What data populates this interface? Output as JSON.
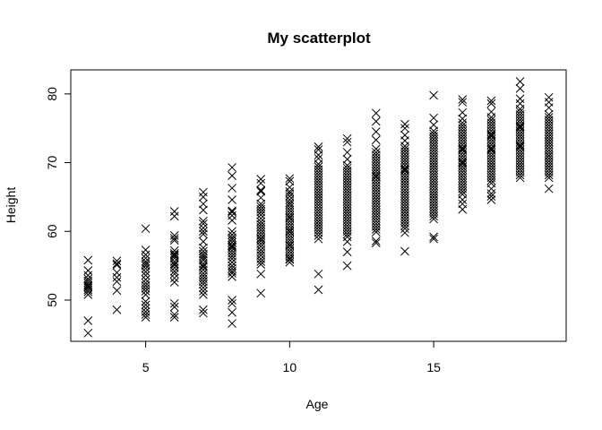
{
  "chart_data": {
    "type": "scatter",
    "title": "My scatterplot",
    "xlabel": "Age",
    "ylabel": "Height",
    "xlim": [
      2.4,
      19.6
    ],
    "ylim": [
      44,
      83.5
    ],
    "x_ticks": [
      5,
      10,
      15
    ],
    "y_ticks": [
      50,
      60,
      70,
      80
    ],
    "x_tick_labels": [
      "5",
      "10",
      "15"
    ],
    "y_tick_labels": [
      "50",
      "60",
      "70",
      "80"
    ],
    "marker": "x",
    "marker_color": "#000000",
    "grid": false,
    "legend": "none",
    "series": [
      {
        "x": [
          3,
          3,
          3,
          3,
          3,
          3,
          3,
          3,
          3,
          3,
          3,
          3,
          3,
          3,
          4,
          4,
          4,
          4,
          4,
          4,
          4,
          4,
          5,
          5,
          5,
          5,
          5,
          5,
          5,
          5,
          5,
          5,
          5,
          5,
          5,
          5,
          5,
          5,
          5,
          5,
          5,
          5,
          5,
          5,
          6,
          6,
          6,
          6,
          6,
          6,
          6,
          6,
          6,
          6,
          6,
          6,
          6,
          6,
          6,
          6,
          6,
          6,
          6,
          6,
          6,
          6,
          7,
          7,
          7,
          7,
          7,
          7,
          7,
          7,
          7,
          7,
          7,
          7,
          7,
          7,
          7,
          7,
          7,
          7,
          7,
          7,
          7,
          7,
          7,
          7,
          7,
          7,
          7,
          7,
          7,
          7,
          8,
          8,
          8,
          8,
          8,
          8,
          8,
          8,
          8,
          8,
          8,
          8,
          8,
          8,
          8,
          8,
          8,
          8,
          8,
          8,
          8,
          8,
          8,
          8,
          8,
          8,
          8,
          8,
          8,
          8,
          9,
          9,
          9,
          9,
          9,
          9,
          9,
          9,
          9,
          9,
          9,
          9,
          9,
          9,
          9,
          9,
          9,
          9,
          9,
          9,
          9,
          9,
          9,
          9,
          9,
          9,
          9,
          9,
          9,
          9,
          10,
          10,
          10,
          10,
          10,
          10,
          10,
          10,
          10,
          10,
          10,
          10,
          10,
          10,
          10,
          10,
          10,
          10,
          10,
          10,
          10,
          10,
          10,
          10,
          10,
          10,
          10,
          10,
          10,
          10,
          10,
          10,
          10,
          10,
          11,
          11,
          11,
          11,
          11,
          11,
          11,
          11,
          11,
          11,
          11,
          11,
          11,
          11,
          11,
          11,
          11,
          11,
          11,
          11,
          11,
          11,
          11,
          11,
          11,
          11,
          11,
          11,
          11,
          11,
          11,
          11,
          11,
          11,
          12,
          12,
          12,
          12,
          12,
          12,
          12,
          12,
          12,
          12,
          12,
          12,
          12,
          12,
          12,
          12,
          12,
          12,
          12,
          12,
          12,
          12,
          12,
          12,
          12,
          12,
          12,
          12,
          12,
          12,
          12,
          12,
          12,
          12,
          13,
          13,
          13,
          13,
          13,
          13,
          13,
          13,
          13,
          13,
          13,
          13,
          13,
          13,
          13,
          13,
          13,
          13,
          13,
          13,
          13,
          13,
          13,
          13,
          13,
          13,
          13,
          13,
          13,
          13,
          13,
          13,
          13,
          13,
          13,
          13,
          13,
          13,
          14,
          14,
          14,
          14,
          14,
          14,
          14,
          14,
          14,
          14,
          14,
          14,
          14,
          14,
          14,
          14,
          14,
          14,
          14,
          14,
          14,
          14,
          14,
          14,
          14,
          14,
          14,
          14,
          14,
          14,
          14,
          14,
          14,
          14,
          14,
          14,
          14,
          14,
          15,
          15,
          15,
          15,
          15,
          15,
          15,
          15,
          15,
          15,
          15,
          15,
          15,
          15,
          15,
          15,
          15,
          15,
          15,
          15,
          15,
          15,
          15,
          15,
          15,
          15,
          15,
          15,
          15,
          15,
          15,
          15,
          15,
          15,
          15,
          15,
          15,
          15,
          16,
          16,
          16,
          16,
          16,
          16,
          16,
          16,
          16,
          16,
          16,
          16,
          16,
          16,
          16,
          16,
          16,
          16,
          16,
          16,
          16,
          16,
          16,
          16,
          16,
          16,
          16,
          16,
          16,
          16,
          16,
          16,
          16,
          16,
          16,
          16,
          17,
          17,
          17,
          17,
          17,
          17,
          17,
          17,
          17,
          17,
          17,
          17,
          17,
          17,
          17,
          17,
          17,
          17,
          17,
          17,
          17,
          17,
          17,
          17,
          17,
          17,
          17,
          17,
          17,
          17,
          17,
          17,
          17,
          17,
          18,
          18,
          18,
          18,
          18,
          18,
          18,
          18,
          18,
          18,
          18,
          18,
          18,
          18,
          18,
          18,
          18,
          18,
          18,
          18,
          18,
          18,
          18,
          18,
          18,
          18,
          18,
          18,
          18,
          18,
          18,
          18,
          19,
          19,
          19,
          19,
          19,
          19,
          19,
          19,
          19,
          19,
          19,
          19,
          19,
          19,
          19,
          19,
          19,
          19,
          19,
          19,
          19,
          19,
          19,
          19,
          19,
          19,
          19,
          19,
          19,
          19
        ],
        "y": [
          55.8,
          54.3,
          53.1,
          52.8,
          52.5,
          52.2,
          52.0,
          51.8,
          51.5,
          51.2,
          50.8,
          47.0,
          45.2,
          53.6,
          55.7,
          55.3,
          55.1,
          54.0,
          52.7,
          51.4,
          48.6,
          53.3,
          60.4,
          57.3,
          56.6,
          56.1,
          55.6,
          55.0,
          54.6,
          54.1,
          53.6,
          53.0,
          52.5,
          52.1,
          51.7,
          51.3,
          50.8,
          49.3,
          48.8,
          48.3,
          47.9,
          47.5,
          49.8,
          55.3,
          62.9,
          62.2,
          59.4,
          58.7,
          57.2,
          56.8,
          56.4,
          56.1,
          55.6,
          55.1,
          54.7,
          54.2,
          53.8,
          53.2,
          52.6,
          49.5,
          49.0,
          47.9,
          47.5,
          59.0,
          56.6,
          55.3,
          65.7,
          65.0,
          64.0,
          63.1,
          61.5,
          61.1,
          60.5,
          58.5,
          57.1,
          56.7,
          56.4,
          56.1,
          55.8,
          55.3,
          54.8,
          54.4,
          53.9,
          53.5,
          53.1,
          52.7,
          52.3,
          51.8,
          51.3,
          50.8,
          48.6,
          48.1,
          57.6,
          59.6,
          60.0,
          55.0,
          69.3,
          68.1,
          66.3,
          64.6,
          62.8,
          62.3,
          61.6,
          60.0,
          59.5,
          59.1,
          58.8,
          58.4,
          58.0,
          57.6,
          57.2,
          56.8,
          56.4,
          56.0,
          55.5,
          55.0,
          54.6,
          54.2,
          53.9,
          53.4,
          50.0,
          49.5,
          48.2,
          46.6,
          63.0,
          57.8,
          67.6,
          67.0,
          65.8,
          64.9,
          64.0,
          63.6,
          63.2,
          62.4,
          61.9,
          61.4,
          61.0,
          60.6,
          60.2,
          59.8,
          59.4,
          59.0,
          58.6,
          58.2,
          57.8,
          57.3,
          56.9,
          56.5,
          56.0,
          55.6,
          55.2,
          53.8,
          51.0,
          66.0,
          62.8,
          58.9,
          67.7,
          67.3,
          66.4,
          65.8,
          65.1,
          64.6,
          64.2,
          63.9,
          63.5,
          63.1,
          62.7,
          62.3,
          61.9,
          61.5,
          61.1,
          60.7,
          60.3,
          59.9,
          59.5,
          59.1,
          58.7,
          58.3,
          57.9,
          57.5,
          57.1,
          56.7,
          56.3,
          55.9,
          55.5,
          65.5,
          62.0,
          60.0,
          58.0,
          56.0,
          72.3,
          71.9,
          71.1,
          70.6,
          69.8,
          69.4,
          69.0,
          68.6,
          68.2,
          67.8,
          67.4,
          67.0,
          66.6,
          66.2,
          65.8,
          65.4,
          65.0,
          64.6,
          64.2,
          63.8,
          63.4,
          63.0,
          62.6,
          62.2,
          61.8,
          61.4,
          61.0,
          60.6,
          60.2,
          59.8,
          59.4,
          58.9,
          53.8,
          51.5,
          73.5,
          73.0,
          71.5,
          70.5,
          69.6,
          69.2,
          68.8,
          68.4,
          68.0,
          67.6,
          67.2,
          66.8,
          66.4,
          66.0,
          65.6,
          65.2,
          64.8,
          64.4,
          64.0,
          63.6,
          63.2,
          62.8,
          62.4,
          62.0,
          61.6,
          61.2,
          60.8,
          60.4,
          60.0,
          59.6,
          59.2,
          58.5,
          57.0,
          55.0,
          77.2,
          76.0,
          74.5,
          73.3,
          72.0,
          71.5,
          71.1,
          70.7,
          70.3,
          69.9,
          69.5,
          69.1,
          68.7,
          68.3,
          67.9,
          67.5,
          67.1,
          66.7,
          66.3,
          65.9,
          65.5,
          65.1,
          64.7,
          64.3,
          63.9,
          63.5,
          63.1,
          62.7,
          62.3,
          61.9,
          61.5,
          61.1,
          60.7,
          60.3,
          59.9,
          58.6,
          58.3,
          68.0,
          75.6,
          75.0,
          74.0,
          73.2,
          72.4,
          72.0,
          71.6,
          71.2,
          70.8,
          70.4,
          70.0,
          69.6,
          69.2,
          68.8,
          68.4,
          68.0,
          67.6,
          67.2,
          66.8,
          66.4,
          66.0,
          65.6,
          65.2,
          64.8,
          64.4,
          64.0,
          63.6,
          63.2,
          62.8,
          62.4,
          62.0,
          61.6,
          61.2,
          60.8,
          60.4,
          59.8,
          57.1,
          69.0,
          79.8,
          76.5,
          75.5,
          74.6,
          74.2,
          73.8,
          73.4,
          73.0,
          72.6,
          72.2,
          71.8,
          71.4,
          71.0,
          70.6,
          70.2,
          69.8,
          69.4,
          69.0,
          68.6,
          68.2,
          67.8,
          67.4,
          67.0,
          66.6,
          66.2,
          65.8,
          65.4,
          65.0,
          64.6,
          64.2,
          63.8,
          63.4,
          63.0,
          62.6,
          62.2,
          61.8,
          59.2,
          58.9,
          79.2,
          78.8,
          77.3,
          76.4,
          75.8,
          75.4,
          75.0,
          74.6,
          74.2,
          73.8,
          73.4,
          73.0,
          72.6,
          72.2,
          71.8,
          71.4,
          71.0,
          70.6,
          70.2,
          69.8,
          69.4,
          69.0,
          68.6,
          68.2,
          67.8,
          67.4,
          67.0,
          66.6,
          66.2,
          65.8,
          65.4,
          64.6,
          64.0,
          63.2,
          70.0,
          72.0,
          79.0,
          78.6,
          77.4,
          76.6,
          76.2,
          75.8,
          75.4,
          75.0,
          74.6,
          74.2,
          73.8,
          73.4,
          73.0,
          72.6,
          72.2,
          71.8,
          71.4,
          71.0,
          70.6,
          70.2,
          69.8,
          69.4,
          69.0,
          68.6,
          68.2,
          67.8,
          67.4,
          67.0,
          66.2,
          65.5,
          65.1,
          64.6,
          72.0,
          74.0,
          81.8,
          80.8,
          79.3,
          78.6,
          77.8,
          77.4,
          77.0,
          76.6,
          76.2,
          75.8,
          75.4,
          75.0,
          74.6,
          74.2,
          73.8,
          73.4,
          73.0,
          72.6,
          72.2,
          71.8,
          71.4,
          71.0,
          70.6,
          70.2,
          69.8,
          69.4,
          69.0,
          68.6,
          68.2,
          67.8,
          75.2,
          72.4,
          79.5,
          78.8,
          78.0,
          77.0,
          76.6,
          76.2,
          75.8,
          75.4,
          75.0,
          74.6,
          74.2,
          73.8,
          73.4,
          73.0,
          72.6,
          72.2,
          71.8,
          71.4,
          71.0,
          70.6,
          70.2,
          69.8,
          69.4,
          69.0,
          68.6,
          68.2,
          67.8,
          66.2,
          73.0,
          71.0
        ]
      }
    ]
  }
}
